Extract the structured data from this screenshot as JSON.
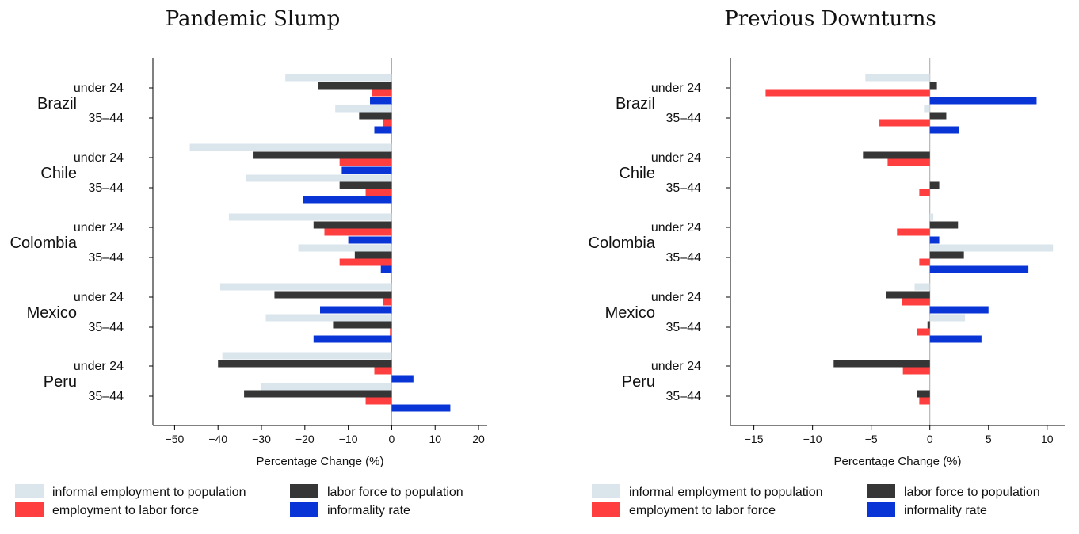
{
  "chart_data": [
    {
      "type": "bar",
      "orientation": "horizontal",
      "title": "Pandemic Slump",
      "xlabel": "Percentage Change (%)",
      "xlim": [
        -55,
        22
      ],
      "xticks": [
        -50,
        -40,
        -30,
        -20,
        -10,
        0,
        10,
        20
      ],
      "xtick_labels": [
        "−50",
        "−40",
        "−30",
        "−20",
        "−10",
        "0",
        "10",
        "20"
      ],
      "countries": [
        "Brazil",
        "Chile",
        "Colombia",
        "Mexico",
        "Peru"
      ],
      "groups": [
        "under 24",
        "35–44"
      ],
      "series": [
        {
          "name": "informal employment to population",
          "color": "#dbe6ec",
          "values": [
            [
              -24.5,
              -13
            ],
            [
              -46.5,
              -33.5
            ],
            [
              -37.5,
              -21.5
            ],
            [
              -39.5,
              -29
            ],
            [
              -39,
              -30
            ]
          ]
        },
        {
          "name": "labor force to population",
          "color": "#363636",
          "values": [
            [
              -17,
              -7.5
            ],
            [
              -32,
              -12
            ],
            [
              -18,
              -8.5
            ],
            [
              -27,
              -13.5
            ],
            [
              -40,
              -34
            ]
          ]
        },
        {
          "name": "employment to labor force",
          "color": "#ff3f3f",
          "values": [
            [
              -4.5,
              -2
            ],
            [
              -12,
              -6
            ],
            [
              -15.5,
              -12
            ],
            [
              -2,
              -0.4
            ],
            [
              -4,
              -6
            ]
          ]
        },
        {
          "name": "informality rate",
          "color": "#0a35d6",
          "values": [
            [
              -5,
              -4
            ],
            [
              -11.5,
              -20.5
            ],
            [
              -10,
              -2.5
            ],
            [
              -16.5,
              -18
            ],
            [
              5,
              13.5
            ]
          ]
        }
      ],
      "legend_position": "bottom"
    },
    {
      "type": "bar",
      "orientation": "horizontal",
      "title": "Previous Downturns",
      "xlabel": "Percentage Change (%)",
      "xlim": [
        -17,
        11.5
      ],
      "xticks": [
        -15,
        -10,
        -5,
        0,
        5,
        10
      ],
      "xtick_labels": [
        "−15",
        "−10",
        "−5",
        "0",
        "5",
        "10"
      ],
      "countries": [
        "Brazil",
        "Chile",
        "Colombia",
        "Mexico",
        "Peru"
      ],
      "groups": [
        "under 24",
        "35–44"
      ],
      "series": [
        {
          "name": "informal employment to population",
          "color": "#dbe6ec",
          "values": [
            [
              -5.5,
              -0.5
            ],
            [
              0,
              0
            ],
            [
              0.3,
              10.5
            ],
            [
              -1.3,
              3
            ],
            [
              0,
              0
            ]
          ]
        },
        {
          "name": "labor force to population",
          "color": "#363636",
          "values": [
            [
              0.6,
              1.4
            ],
            [
              -5.7,
              0.8
            ],
            [
              2.4,
              2.9
            ],
            [
              -3.7,
              -0.2
            ],
            [
              -8.2,
              -1.1
            ]
          ]
        },
        {
          "name": "employment to labor force",
          "color": "#ff3f3f",
          "values": [
            [
              -14,
              -4.3
            ],
            [
              -3.6,
              -0.9
            ],
            [
              -2.8,
              -0.9
            ],
            [
              -2.4,
              -1.1
            ],
            [
              -2.3,
              -0.9
            ]
          ]
        },
        {
          "name": "informality rate",
          "color": "#0a35d6",
          "values": [
            [
              9.1,
              2.5
            ],
            [
              0,
              0
            ],
            [
              0.8,
              8.4
            ],
            [
              5,
              4.4
            ],
            [
              0,
              0
            ]
          ]
        }
      ],
      "legend_position": "bottom"
    }
  ],
  "legend": {
    "entries": [
      {
        "label": "informal employment to population",
        "color": "#dbe6ec"
      },
      {
        "label": "labor force to population",
        "color": "#363636"
      },
      {
        "label": "employment to labor force",
        "color": "#ff3f3f"
      },
      {
        "label": "informality rate",
        "color": "#0a35d6"
      }
    ]
  }
}
